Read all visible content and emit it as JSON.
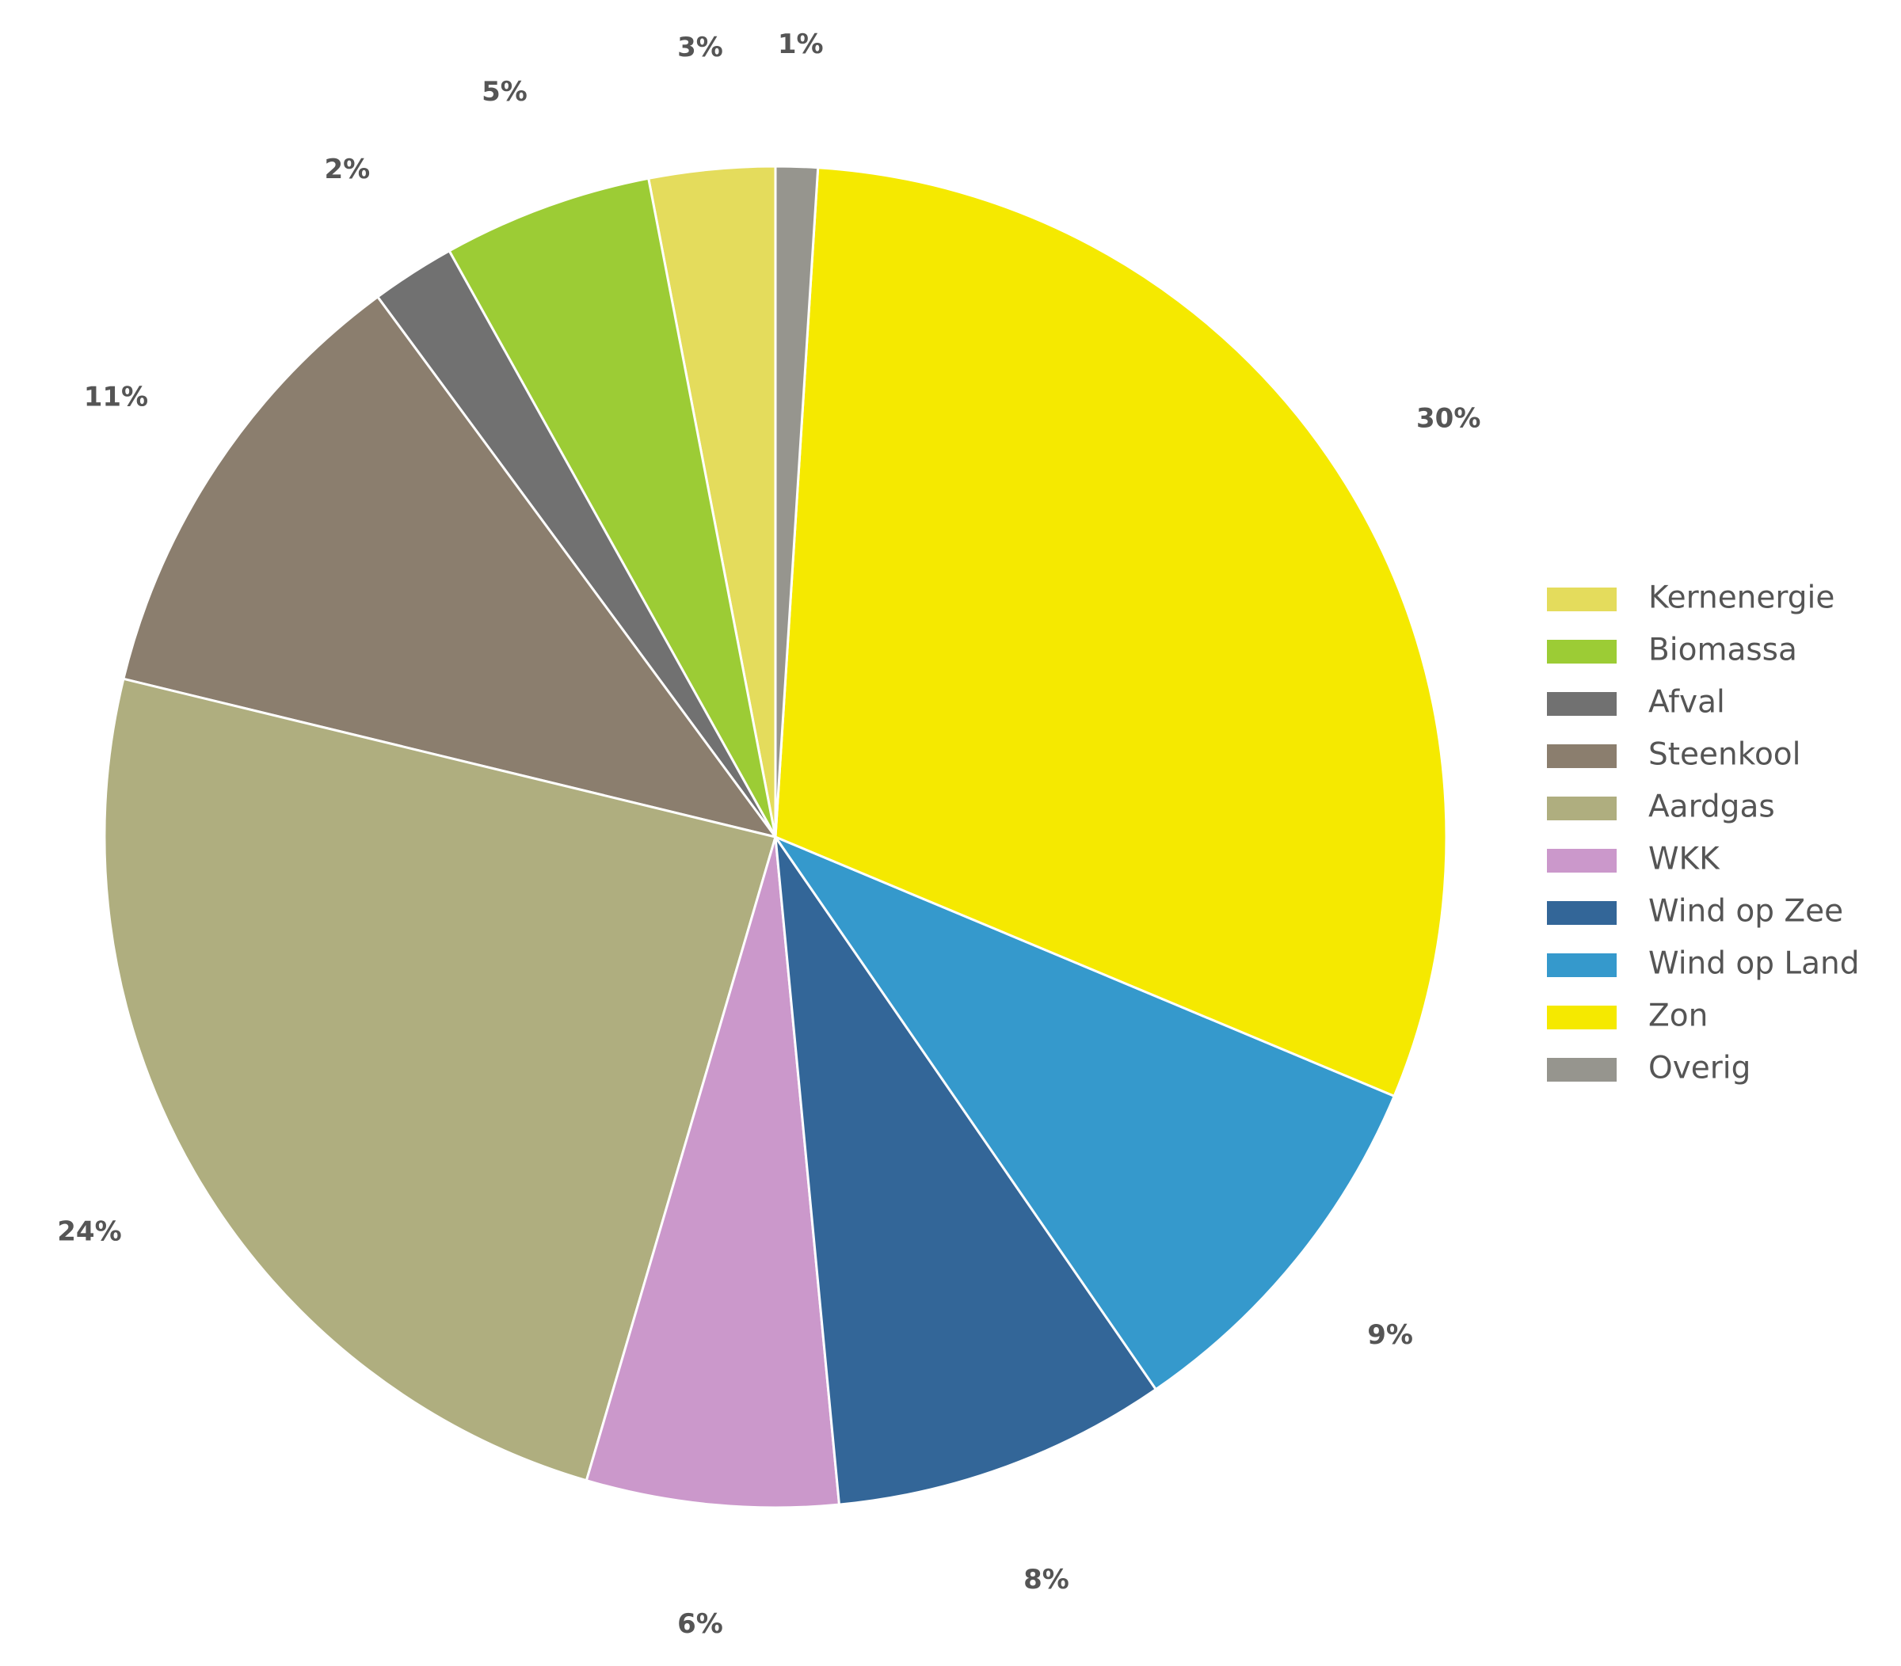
{
  "chart_data": {
    "type": "pie",
    "categories": [
      "Kernenergie",
      "Biomassa",
      "Afval",
      "Steenkool",
      "Aardgas",
      "WKK",
      "Wind op Zee",
      "Wind op Land",
      "Zon",
      "Overig"
    ],
    "values": [
      3,
      5,
      2,
      11,
      24,
      6,
      8,
      9,
      30,
      1
    ],
    "value_labels": [
      "3%",
      "5%",
      "2%",
      "11%",
      "24%",
      "6%",
      "8%",
      "9%",
      "30%",
      "1%"
    ],
    "colors": [
      "#e4dc5c",
      "#9ccc35",
      "#717171",
      "#8b7e6e",
      "#afae7f",
      "#cb98cb",
      "#336698",
      "#3599cc",
      "#f5e900",
      "#96958e"
    ],
    "legend": "right"
  }
}
